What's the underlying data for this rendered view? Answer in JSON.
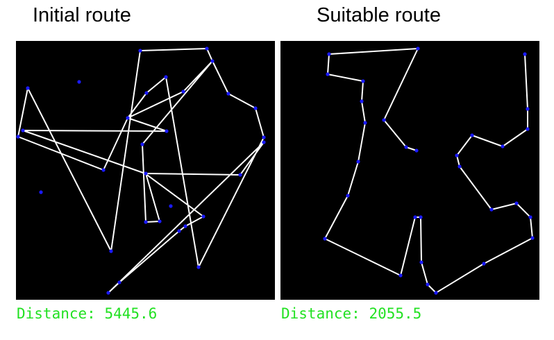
{
  "panels": [
    {
      "id": "initial",
      "title": "Initial route",
      "distance_label": "Distance:",
      "distance_value": "5445.6",
      "route": [
        [
          202,
          73
        ],
        [
          298,
          70
        ],
        [
          306,
          88
        ],
        [
          329,
          135
        ],
        [
          368,
          156
        ],
        [
          380,
          198
        ],
        [
          286,
          385
        ],
        [
          239,
          111
        ],
        [
          211,
          134
        ],
        [
          184,
          170
        ],
        [
          264,
          132
        ],
        [
          306,
          88
        ],
        [
          205,
          208
        ],
        [
          210,
          320
        ],
        [
          230,
          319
        ],
        [
          210,
          250
        ],
        [
          346,
          252
        ],
        [
          380,
          205
        ],
        [
          156,
          422
        ],
        [
          172,
          407
        ],
        [
          258,
          333
        ],
        [
          267,
          326
        ],
        [
          293,
          312
        ],
        [
          209,
          250
        ],
        [
          33,
          188
        ],
        [
          240,
          189
        ],
        [
          184,
          170
        ],
        [
          149,
          245
        ],
        [
          26,
          197
        ],
        [
          40,
          127
        ],
        [
          160,
          362
        ],
        [
          202,
          73
        ]
      ],
      "points": [
        [
          202,
          73
        ],
        [
          298,
          70
        ],
        [
          306,
          88
        ],
        [
          329,
          135
        ],
        [
          368,
          156
        ],
        [
          380,
          198
        ],
        [
          380,
          205
        ],
        [
          286,
          385
        ],
        [
          239,
          111
        ],
        [
          211,
          134
        ],
        [
          184,
          170
        ],
        [
          264,
          132
        ],
        [
          205,
          208
        ],
        [
          210,
          320
        ],
        [
          230,
          319
        ],
        [
          210,
          250
        ],
        [
          346,
          252
        ],
        [
          156,
          422
        ],
        [
          172,
          407
        ],
        [
          258,
          333
        ],
        [
          267,
          326
        ],
        [
          293,
          312
        ],
        [
          33,
          188
        ],
        [
          240,
          189
        ],
        [
          149,
          245
        ],
        [
          26,
          197
        ],
        [
          40,
          127
        ],
        [
          160,
          362
        ],
        [
          59,
          277
        ],
        [
          114,
          118
        ],
        [
          246,
          297
        ]
      ]
    },
    {
      "id": "suitable",
      "title": "Suitable route",
      "distance_label": "Distance:",
      "distance_value": "2055.5",
      "route": [
        [
          474,
          78
        ],
        [
          602,
          70
        ],
        [
          553,
          173
        ],
        [
          585,
          212
        ],
        [
          600,
          217
        ]
      ],
      "route2": [
        [
          756,
          78
        ],
        [
          760,
          157
        ],
        [
          760,
          186
        ],
        [
          724,
          211
        ],
        [
          680,
          195
        ],
        [
          658,
          224
        ],
        [
          662,
          240
        ],
        [
          708,
          302
        ],
        [
          744,
          293
        ],
        [
          764,
          313
        ],
        [
          767,
          343
        ],
        [
          697,
          380
        ],
        [
          628,
          422
        ],
        [
          616,
          410
        ],
        [
          607,
          378
        ],
        [
          606,
          313
        ],
        [
          598,
          313
        ],
        [
          577,
          397
        ],
        [
          468,
          344
        ],
        [
          501,
          282
        ],
        [
          516,
          233
        ],
        [
          526,
          177
        ],
        [
          521,
          146
        ],
        [
          523,
          117
        ],
        [
          472,
          107
        ],
        [
          474,
          78
        ]
      ],
      "points": [
        [
          474,
          78
        ],
        [
          602,
          70
        ],
        [
          553,
          173
        ],
        [
          585,
          212
        ],
        [
          600,
          217
        ],
        [
          756,
          78
        ],
        [
          760,
          157
        ],
        [
          760,
          186
        ],
        [
          724,
          211
        ],
        [
          680,
          195
        ],
        [
          658,
          224
        ],
        [
          662,
          240
        ],
        [
          708,
          302
        ],
        [
          744,
          293
        ],
        [
          764,
          313
        ],
        [
          767,
          343
        ],
        [
          697,
          380
        ],
        [
          628,
          422
        ],
        [
          616,
          410
        ],
        [
          607,
          378
        ],
        [
          606,
          313
        ],
        [
          598,
          313
        ],
        [
          577,
          397
        ],
        [
          468,
          344
        ],
        [
          501,
          282
        ],
        [
          516,
          233
        ],
        [
          526,
          177
        ],
        [
          521,
          146
        ],
        [
          523,
          117
        ],
        [
          472,
          107
        ]
      ]
    }
  ]
}
